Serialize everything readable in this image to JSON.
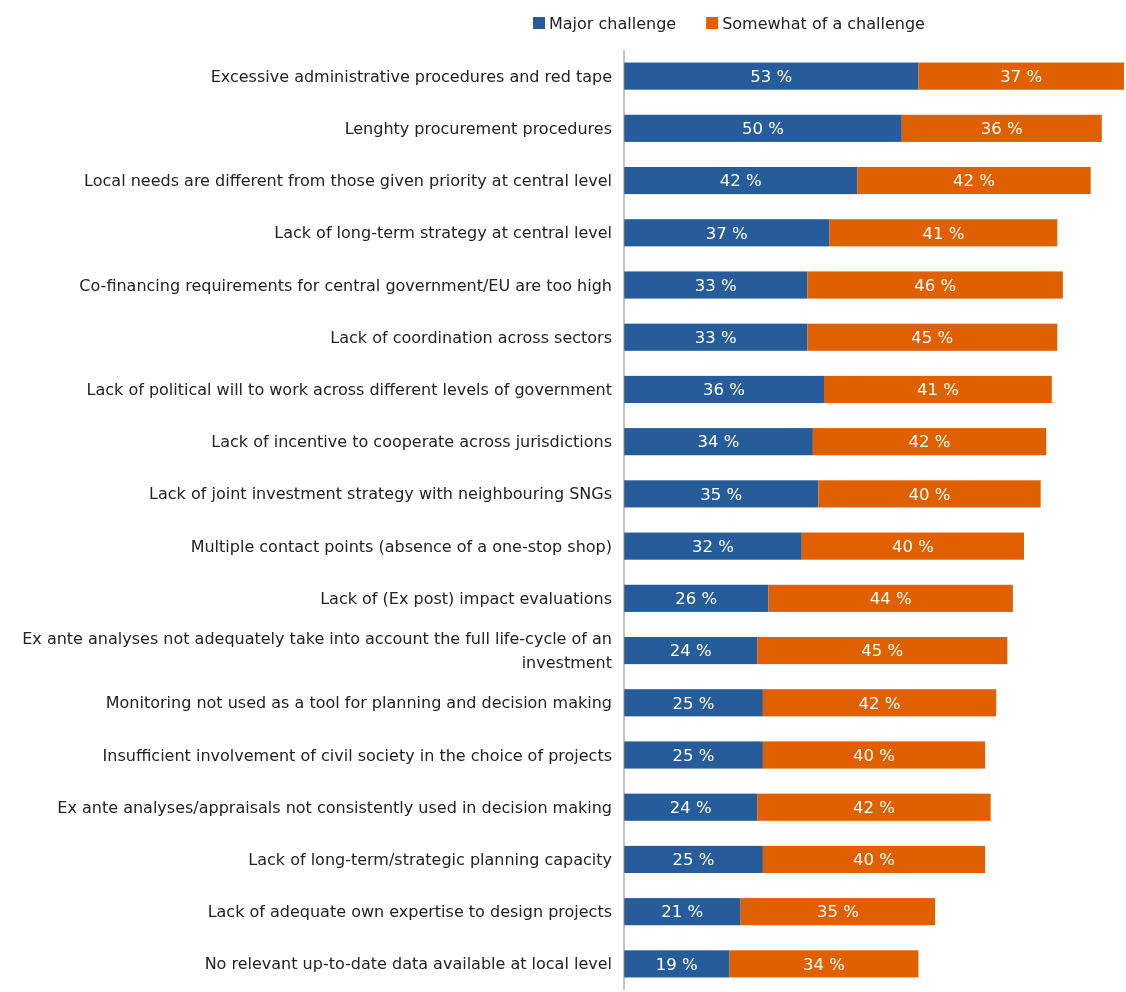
{
  "chart_data": {
    "type": "bar",
    "orientation": "horizontal",
    "stacked": true,
    "legend": "top",
    "categories": [
      "Excessive administrative procedures and red tape",
      "Lenghty procurement procedures",
      "Local needs are different from those given priority at central level",
      "Lack of long-term strategy at central level",
      "Co-financing requirements for central government/EU are too high",
      "Lack of coordination across sectors",
      "Lack of political will to work across different levels of government",
      "Lack of incentive to cooperate across jurisdictions",
      "Lack of joint investment strategy with neighbouring SNGs",
      "Multiple contact points (absence of a one-stop shop)",
      "Lack of (Ex post) impact evaluations",
      "Ex ante analyses not adequately take into account the full life-cycle of an investment",
      "Monitoring not used as a tool for planning and decision making",
      "Insufficient involvement of civil society in the choice of projects",
      "Ex ante analyses/appraisals not consistently used in decision making",
      "Lack of long-term/strategic planning capacity",
      "Lack of adequate own expertise to design projects",
      "No relevant up-to-date data available at local level"
    ],
    "series": [
      {
        "name": "Major challenge",
        "color": "#255c99",
        "values": [
          53,
          50,
          42,
          37,
          33,
          33,
          36,
          34,
          35,
          32,
          26,
          24,
          25,
          25,
          24,
          25,
          21,
          19
        ],
        "value_labels": [
          "53 %",
          "50 %",
          "42 %",
          "37 %",
          "33 %",
          "33 %",
          "36 %",
          "34 %",
          "35 %",
          "32 %",
          "26 %",
          "24 %",
          "25 %",
          "25 %",
          "24 %",
          "25 %",
          "21 %",
          "19 %"
        ]
      },
      {
        "name": "Somewhat of a challenge",
        "color": "#e06000",
        "values": [
          37,
          36,
          42,
          41,
          46,
          45,
          41,
          42,
          40,
          40,
          44,
          45,
          42,
          40,
          42,
          40,
          35,
          34
        ],
        "value_labels": [
          "37 %",
          "36 %",
          "42 %",
          "41 %",
          "46 %",
          "45 %",
          "41 %",
          "42 %",
          "40 %",
          "40 %",
          "44 %",
          "45 %",
          "42 %",
          "40 %",
          "42 %",
          "40 %",
          "35 %",
          "34 %"
        ]
      }
    ]
  }
}
